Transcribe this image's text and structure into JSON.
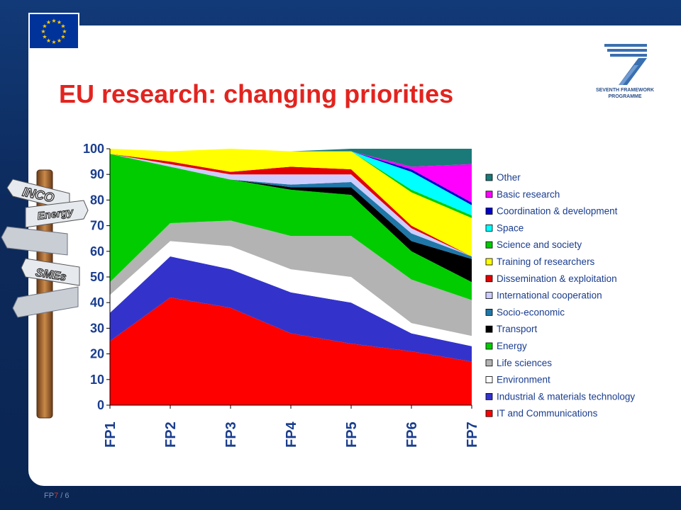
{
  "slide": {
    "title": "EU research: changing priorities",
    "footer_prefix": "FP",
    "footer_num": "7",
    "footer_page": " / 6"
  },
  "logo": {
    "line1": "SEVENTH FRAMEWORK",
    "line2": "PROGRAMME",
    "digit": "7"
  },
  "signpost": {
    "signs": [
      "INCO",
      "Energy",
      "SMEs"
    ]
  },
  "chart_data": {
    "type": "area",
    "stacked": true,
    "categories": [
      "FP1",
      "FP2",
      "FP3",
      "FP4",
      "FP5",
      "FP6",
      "FP7"
    ],
    "ylim": [
      0,
      100
    ],
    "yticks": [
      0,
      10,
      20,
      30,
      40,
      50,
      60,
      70,
      80,
      90,
      100
    ],
    "grid": false,
    "legend_position": "right",
    "series": [
      {
        "name": "IT and Communications",
        "color": "#ff0000",
        "values": [
          25,
          42,
          38,
          28,
          24,
          21,
          17
        ]
      },
      {
        "name": "Industrial & materials technology",
        "color": "#3333cc",
        "values": [
          11,
          16,
          15,
          16,
          16,
          7,
          6
        ]
      },
      {
        "name": "Environment",
        "color": "#ffffff",
        "values": [
          7,
          6,
          9,
          9,
          10,
          4,
          4
        ]
      },
      {
        "name": "Life sciences",
        "color": "#b3b3b3",
        "values": [
          5,
          7,
          10,
          13,
          16,
          17,
          14
        ]
      },
      {
        "name": "Energy",
        "color": "#00cc00",
        "values": [
          50,
          22,
          16,
          18,
          16,
          11,
          7
        ]
      },
      {
        "name": "Transport",
        "color": "#000000",
        "values": [
          0,
          0,
          0,
          1,
          3,
          4,
          9
        ]
      },
      {
        "name": "Socio-economic",
        "color": "#1f77a8",
        "values": [
          0,
          0,
          0,
          1,
          2,
          3,
          1
        ]
      },
      {
        "name": "International cooperation",
        "color": "#ccccff",
        "values": [
          0,
          1,
          2,
          4,
          3,
          2,
          0
        ]
      },
      {
        "name": "Dissemination & exploitation",
        "color": "#e30000",
        "values": [
          0,
          1,
          1,
          3,
          2,
          1,
          0
        ]
      },
      {
        "name": "Training of researchers",
        "color": "#ffff00",
        "values": [
          2,
          4,
          9,
          6,
          7,
          13,
          15
        ]
      },
      {
        "name": "Science and society",
        "color": "#00cc00",
        "values": [
          0,
          0,
          0,
          0,
          0,
          1,
          1
        ]
      },
      {
        "name": "Space",
        "color": "#00ffff",
        "values": [
          0,
          0,
          0,
          0,
          0,
          7,
          4
        ]
      },
      {
        "name": "Coordination & development",
        "color": "#0000cc",
        "values": [
          0,
          0,
          0,
          0,
          0,
          1,
          1
        ]
      },
      {
        "name": "Basic research",
        "color": "#ff00ff",
        "values": [
          0,
          0,
          0,
          0,
          0,
          1,
          15
        ]
      },
      {
        "name": "Other",
        "color": "#1a7a7a",
        "values": [
          0,
          0,
          0,
          0,
          1,
          7,
          6
        ]
      }
    ],
    "legend_order": [
      "Other",
      "Basic research",
      "Coordination & development",
      "Space",
      "Science and society",
      "Training of researchers",
      "Dissemination & exploitation",
      "International cooperation",
      "Socio-economic",
      "Transport",
      "Energy",
      "Life sciences",
      "Environment",
      "Industrial & materials technology",
      "IT and Communications"
    ]
  }
}
